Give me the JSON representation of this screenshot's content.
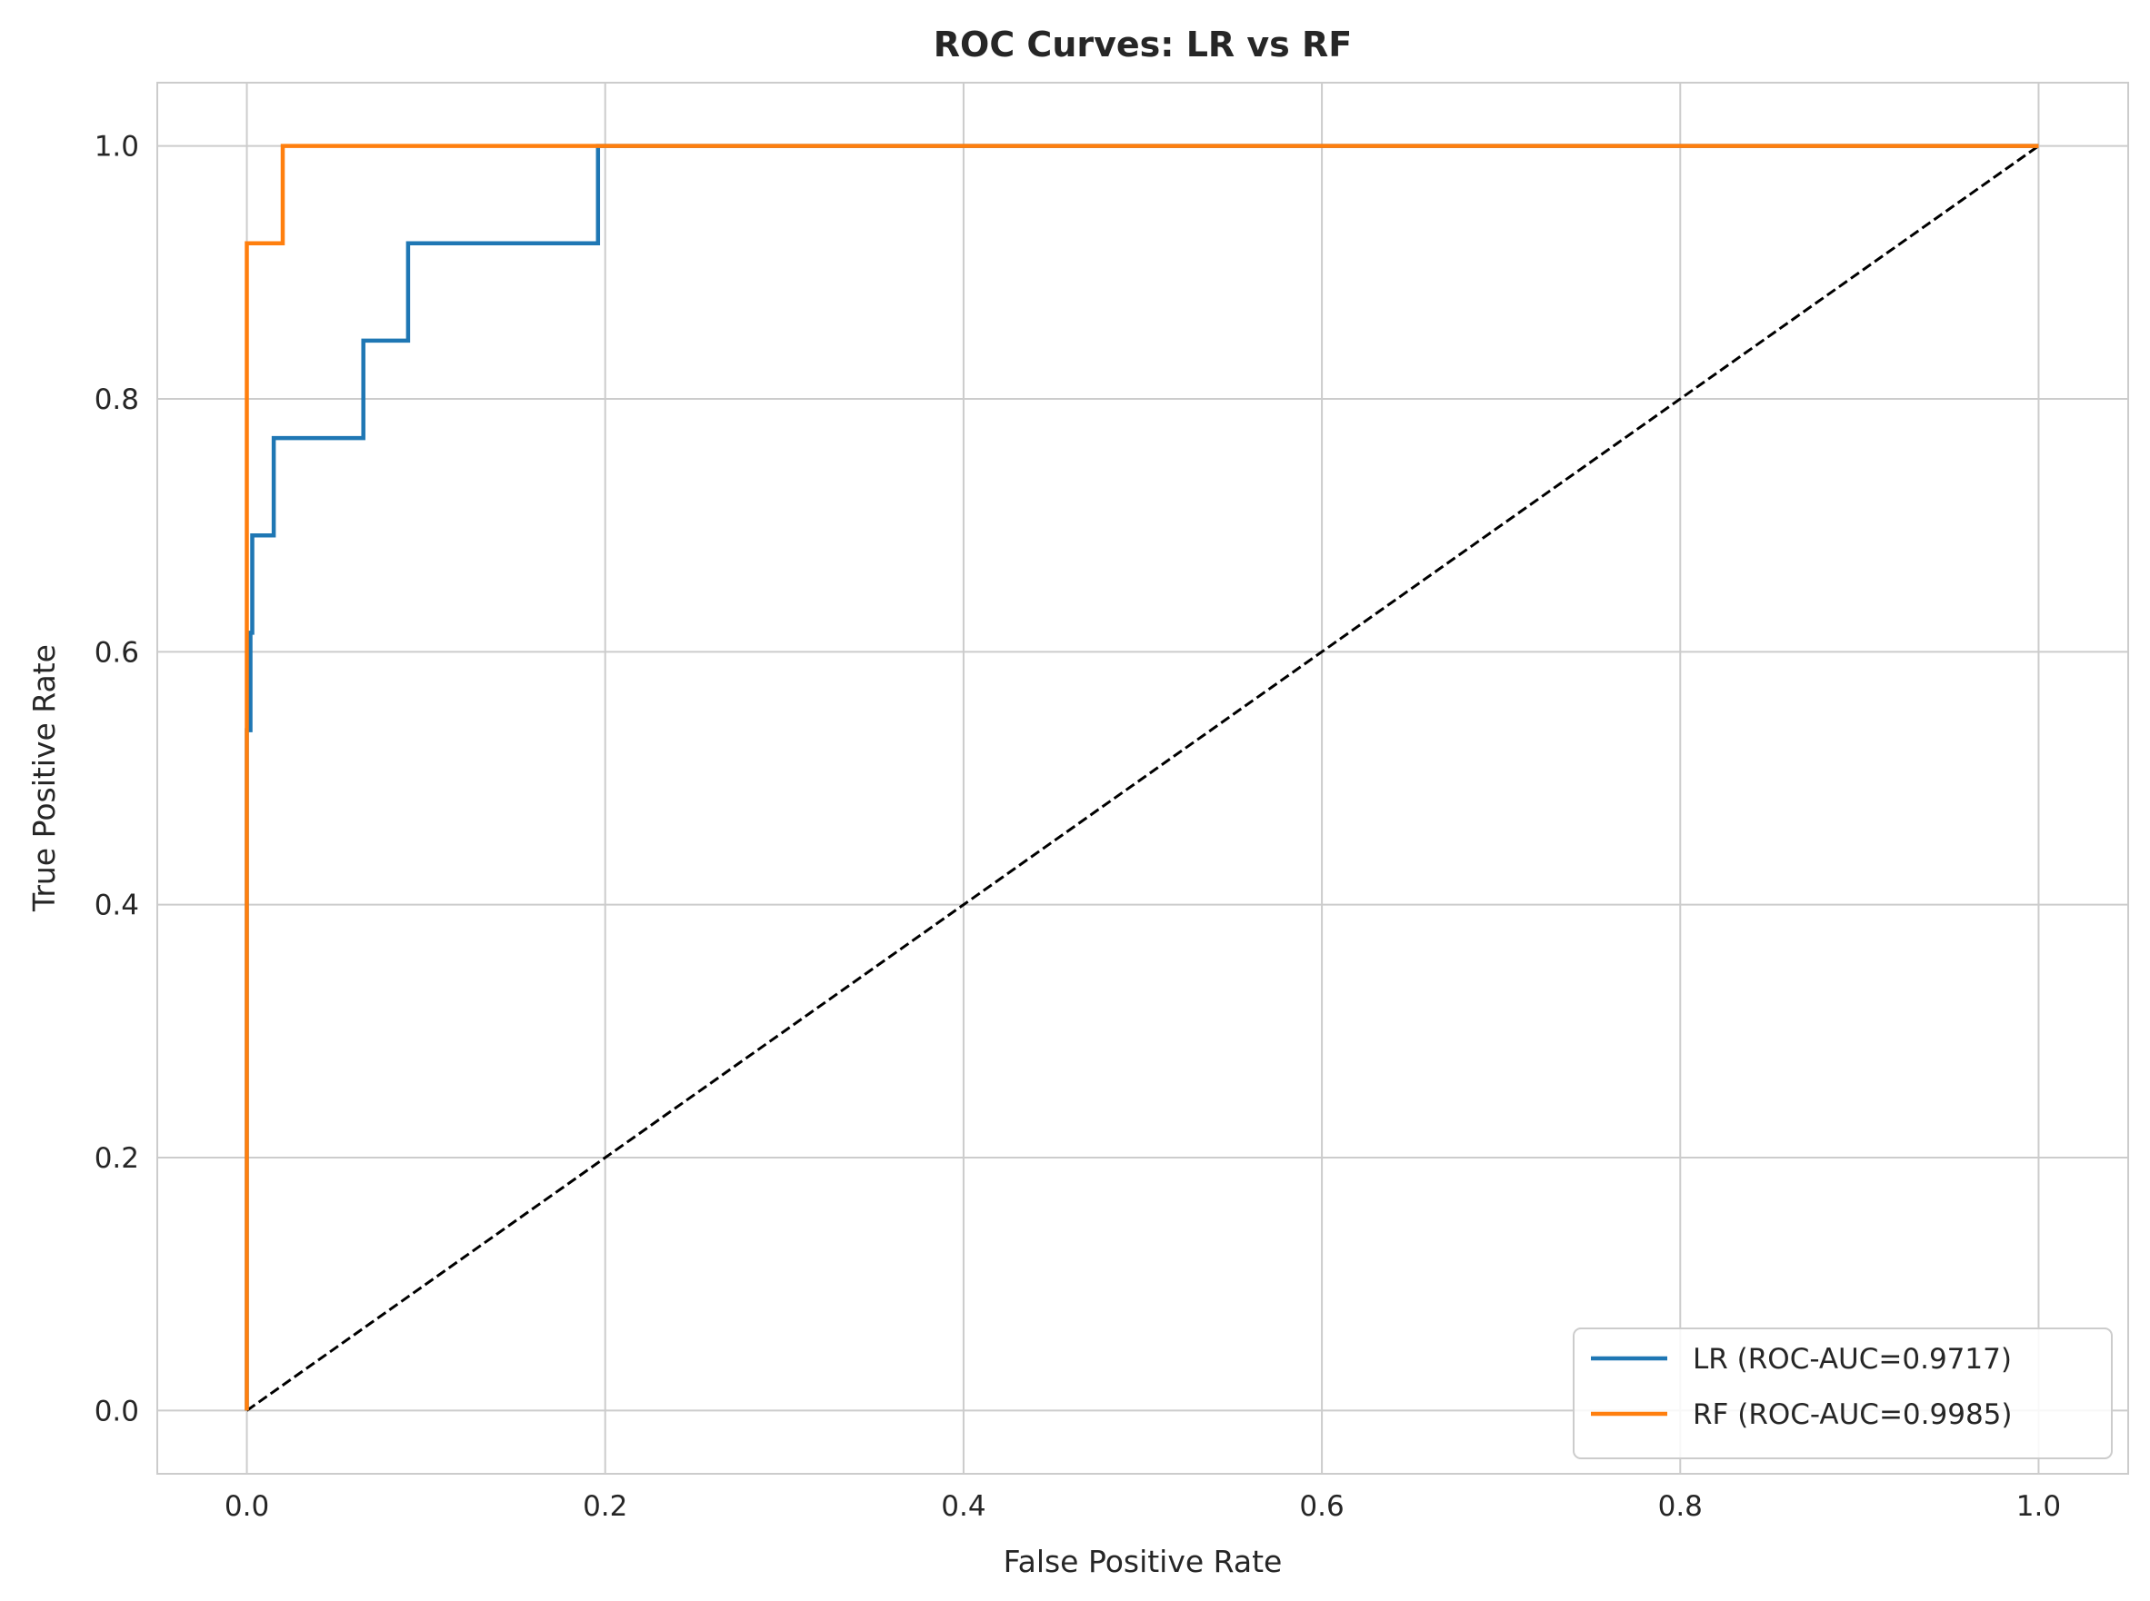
{
  "chart_data": {
    "type": "line",
    "title": "ROC Curves: LR vs RF",
    "xlabel": "False Positive Rate",
    "ylabel": "True Positive Rate",
    "xlim": [
      -0.05,
      1.05
    ],
    "ylim": [
      -0.05,
      1.05
    ],
    "xticks": [
      0.0,
      0.2,
      0.4,
      0.6,
      0.8,
      1.0
    ],
    "xtick_labels": [
      "0.0",
      "0.2",
      "0.4",
      "0.6",
      "0.8",
      "1.0"
    ],
    "yticks": [
      0.0,
      0.2,
      0.4,
      0.6,
      0.8,
      1.0
    ],
    "ytick_labels": [
      "0.0",
      "0.2",
      "0.4",
      "0.6",
      "0.8",
      "1.0"
    ],
    "grid": true,
    "legend_position": "lower-right",
    "series": [
      {
        "name": "LR (ROC-AUC=0.9717)",
        "color": "#1f77b4",
        "style": "solid",
        "x": [
          0.0,
          0.0,
          0.002,
          0.002,
          0.003,
          0.003,
          0.015,
          0.015,
          0.065,
          0.065,
          0.09,
          0.09,
          0.196,
          0.196,
          1.0
        ],
        "y": [
          0.0,
          0.538,
          0.538,
          0.615,
          0.615,
          0.692,
          0.692,
          0.769,
          0.769,
          0.846,
          0.846,
          0.923,
          0.923,
          1.0,
          1.0
        ]
      },
      {
        "name": "RF (ROC-AUC=0.9985)",
        "color": "#ff7f0e",
        "style": "solid",
        "x": [
          0.0,
          0.0,
          0.02,
          0.02,
          1.0
        ],
        "y": [
          0.0,
          0.923,
          0.923,
          1.0,
          1.0
        ]
      },
      {
        "color": "#000000",
        "style": "dashed",
        "x": [
          0.0,
          1.0
        ],
        "y": [
          0.0,
          1.0
        ]
      }
    ]
  }
}
